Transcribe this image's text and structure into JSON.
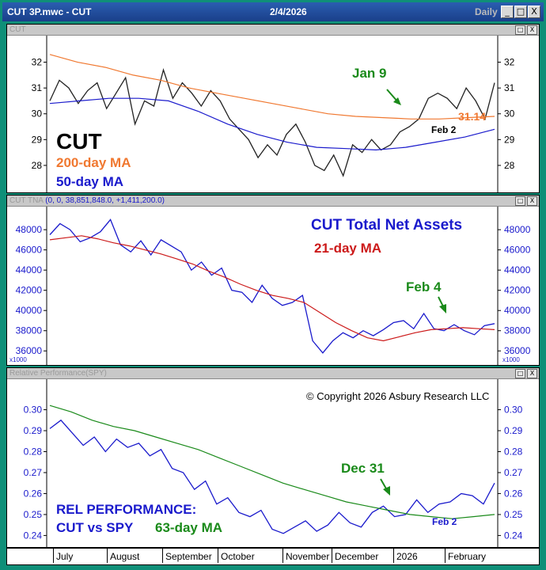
{
  "window": {
    "title": "CUT 3P.mwc - CUT",
    "date": "2/4/2026",
    "period": "Daily",
    "min": "_",
    "max": "□",
    "close": "X"
  },
  "pane_buttons": {
    "restore": "□",
    "close": "X"
  },
  "colors": {
    "orange": "#f07830",
    "blue": "#1a1acc",
    "green": "#1a8a1a",
    "red": "#cc1a1a",
    "black": "#000000"
  },
  "pane1": {
    "title": "CUT",
    "ylabels": [
      "32",
      "31",
      "30",
      "29",
      "28"
    ],
    "big_label": "CUT",
    "ma200_label": "200-day MA",
    "ma50_label": "50-day MA",
    "ann_jan9": "Jan 9",
    "ann_feb2": "Feb 2",
    "last_value": "31.14"
  },
  "pane2": {
    "title": "CUT TNA",
    "params": "(0, 0, 38,851,848.0, +1,411,200.0)",
    "ylabels": [
      "48000",
      "46000",
      "44000",
      "42000",
      "40000",
      "38000",
      "36000"
    ],
    "scale": "x1000",
    "label_main": "CUT Total Net Assets",
    "label_ma": "21-day MA",
    "ann_feb4": "Feb 4"
  },
  "pane3": {
    "title": "Relative Performance(SPY)",
    "ylabels": [
      "0.30",
      "0.29",
      "0.28",
      "0.27",
      "0.26",
      "0.25",
      "0.24"
    ],
    "copyright": "© Copyright 2026 Asbury Research LLC",
    "label_rel": "REL PERFORMANCE:",
    "label_cut": "CUT vs SPY",
    "label_ma": "63-day MA",
    "ann_dec31": "Dec 31",
    "ann_feb2": "Feb 2"
  },
  "xaxis": [
    "July",
    "August",
    "September",
    "October",
    "November",
    "December",
    "2026",
    "February"
  ],
  "chart_data": [
    {
      "type": "line",
      "title": "CUT",
      "ylim": [
        27.2,
        32.6
      ],
      "series": [
        {
          "name": "CUT",
          "values": [
            30.5,
            31.3,
            31.0,
            30.4,
            30.9,
            31.2,
            30.2,
            30.8,
            31.4,
            29.6,
            30.5,
            30.3,
            31.7,
            30.6,
            31.2,
            30.8,
            30.3,
            30.9,
            30.5,
            29.8,
            29.4,
            29.0,
            28.3,
            28.8,
            28.4,
            29.2,
            29.6,
            28.9,
            28.0,
            27.8,
            28.4,
            27.6,
            28.8,
            28.5,
            29.0,
            28.6,
            28.8,
            29.3,
            29.5,
            29.8,
            30.6,
            30.8,
            30.6,
            30.2,
            31.0,
            30.5,
            29.8,
            31.2
          ]
        },
        {
          "name": "200-day MA",
          "values": [
            32.3,
            32.0,
            31.8,
            31.5,
            31.3,
            31.0,
            30.8,
            30.6,
            30.4,
            30.2,
            30.0,
            29.9,
            29.85,
            29.8,
            29.8,
            29.85,
            29.9
          ]
        },
        {
          "name": "50-day MA",
          "values": [
            30.4,
            30.5,
            30.6,
            30.6,
            30.5,
            30.1,
            29.6,
            29.2,
            28.9,
            28.7,
            28.65,
            28.6,
            28.7,
            28.9,
            29.1,
            29.4
          ]
        }
      ]
    },
    {
      "type": "line",
      "title": "CUT TNA",
      "ylim": [
        35000,
        49500
      ],
      "series": [
        {
          "name": "CUT Total Net Assets",
          "values": [
            47500,
            48600,
            48000,
            46800,
            47200,
            47800,
            49000,
            46500,
            45800,
            46900,
            45500,
            47000,
            46400,
            45800,
            44000,
            44800,
            43500,
            44200,
            42000,
            41800,
            40800,
            42500,
            41200,
            40500,
            40800,
            41500,
            37000,
            35800,
            37000,
            37800,
            37300,
            38000,
            37500,
            38100,
            38800,
            39000,
            38200,
            39700,
            38200,
            38000,
            38600,
            38000,
            37600,
            38500,
            38700
          ]
        },
        {
          "name": "21-day MA",
          "values": [
            47000,
            47200,
            47400,
            47100,
            46700,
            46400,
            46000,
            45600,
            45100,
            44600,
            43900,
            43300,
            42600,
            42000,
            41500,
            41200,
            40800,
            39800,
            38800,
            38000,
            37300,
            37000,
            37400,
            37800,
            38100,
            38200,
            38300,
            38200,
            38100
          ]
        }
      ]
    },
    {
      "type": "line",
      "title": "Relative Performance(SPY)",
      "ylim": [
        0.236,
        0.307
      ],
      "series": [
        {
          "name": "CUT vs SPY",
          "values": [
            0.291,
            0.295,
            0.289,
            0.283,
            0.287,
            0.28,
            0.286,
            0.282,
            0.284,
            0.278,
            0.281,
            0.272,
            0.27,
            0.262,
            0.266,
            0.255,
            0.258,
            0.251,
            0.249,
            0.252,
            0.243,
            0.241,
            0.244,
            0.247,
            0.242,
            0.245,
            0.251,
            0.246,
            0.244,
            0.251,
            0.254,
            0.249,
            0.25,
            0.257,
            0.251,
            0.255,
            0.256,
            0.26,
            0.259,
            0.255,
            0.265
          ]
        },
        {
          "name": "63-day MA",
          "values": [
            0.302,
            0.299,
            0.295,
            0.292,
            0.29,
            0.287,
            0.284,
            0.281,
            0.277,
            0.273,
            0.269,
            0.265,
            0.262,
            0.259,
            0.256,
            0.254,
            0.252,
            0.25,
            0.249,
            0.248,
            0.249,
            0.25
          ]
        }
      ]
    }
  ]
}
